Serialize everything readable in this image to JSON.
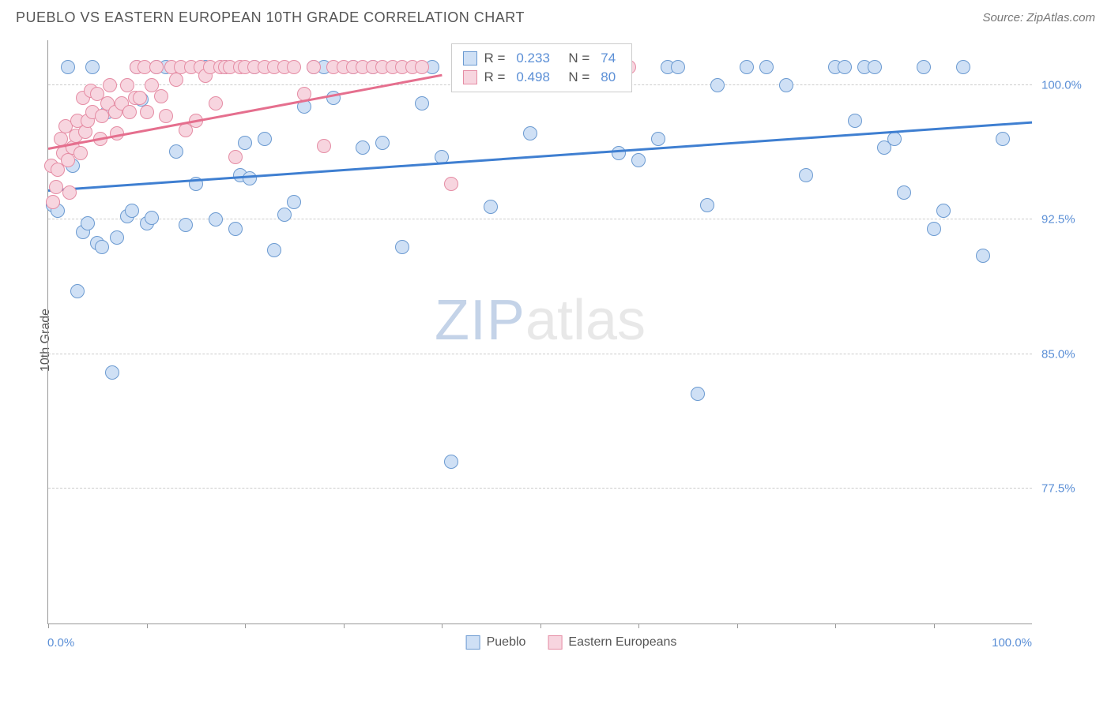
{
  "title": "PUEBLO VS EASTERN EUROPEAN 10TH GRADE CORRELATION CHART",
  "source": "Source: ZipAtlas.com",
  "y_axis_label": "10th Grade",
  "watermark": {
    "part1": "ZIP",
    "part2": "atlas"
  },
  "chart": {
    "type": "scatter",
    "xlim": [
      0,
      100
    ],
    "ylim": [
      70,
      102.5
    ],
    "y_ticks": [
      77.5,
      85.0,
      92.5,
      100.0
    ],
    "y_tick_labels": [
      "77.5%",
      "85.0%",
      "92.5%",
      "100.0%"
    ],
    "x_ticks": [
      0,
      10,
      20,
      30,
      40,
      50,
      60,
      70,
      80,
      90
    ],
    "x_min_label": "0.0%",
    "x_max_label": "100.0%",
    "grid_color": "#cccccc",
    "background_color": "#ffffff",
    "point_radius": 9,
    "series": [
      {
        "name": "Pueblo",
        "fill": "#cfe0f5",
        "stroke": "#6b9ad1",
        "r_value": "0.233",
        "n_value": "74",
        "trend": {
          "x1": 0,
          "y1": 94.2,
          "x2": 100,
          "y2": 98.0,
          "color": "#3f7fd1"
        },
        "points": [
          [
            0.5,
            93.3
          ],
          [
            1,
            93.0
          ],
          [
            2,
            101.0
          ],
          [
            2.5,
            95.5
          ],
          [
            3,
            88.5
          ],
          [
            3.5,
            91.8
          ],
          [
            4,
            92.3
          ],
          [
            4.5,
            101.0
          ],
          [
            5,
            91.2
          ],
          [
            5.5,
            91.0
          ],
          [
            6,
            98.5
          ],
          [
            6.5,
            84.0
          ],
          [
            7,
            91.5
          ],
          [
            8,
            92.7
          ],
          [
            8.5,
            93.0
          ],
          [
            9,
            101.0
          ],
          [
            9.5,
            99.2
          ],
          [
            10,
            92.3
          ],
          [
            10.5,
            92.6
          ],
          [
            11,
            101.0
          ],
          [
            12,
            101.0
          ],
          [
            13,
            96.3
          ],
          [
            14,
            92.2
          ],
          [
            15,
            94.5
          ],
          [
            16,
            101.0
          ],
          [
            17,
            92.5
          ],
          [
            18,
            101.0
          ],
          [
            19,
            92.0
          ],
          [
            19.5,
            95.0
          ],
          [
            20,
            96.8
          ],
          [
            20.5,
            94.8
          ],
          [
            21,
            101.0
          ],
          [
            22,
            97.0
          ],
          [
            23,
            90.8
          ],
          [
            24,
            92.8
          ],
          [
            25,
            93.5
          ],
          [
            26,
            98.8
          ],
          [
            27,
            101.0
          ],
          [
            28,
            101.0
          ],
          [
            29,
            99.3
          ],
          [
            31,
            101.0
          ],
          [
            32,
            96.5
          ],
          [
            33,
            101.0
          ],
          [
            34,
            96.8
          ],
          [
            36,
            91.0
          ],
          [
            38,
            99.0
          ],
          [
            39,
            101.0
          ],
          [
            40,
            96.0
          ],
          [
            41,
            79.0
          ],
          [
            42,
            101.0
          ],
          [
            44,
            101.0
          ],
          [
            45,
            93.2
          ],
          [
            47,
            101.0
          ],
          [
            49,
            97.3
          ],
          [
            54,
            101.0
          ],
          [
            58,
            96.2
          ],
          [
            60,
            95.8
          ],
          [
            62,
            97.0
          ],
          [
            63,
            101.0
          ],
          [
            64,
            101.0
          ],
          [
            66,
            82.8
          ],
          [
            67,
            93.3
          ],
          [
            68,
            100.0
          ],
          [
            71,
            101.0
          ],
          [
            73,
            101.0
          ],
          [
            75,
            100.0
          ],
          [
            77,
            95.0
          ],
          [
            80,
            101.0
          ],
          [
            81,
            101.0
          ],
          [
            82,
            98.0
          ],
          [
            83,
            101.0
          ],
          [
            84,
            101.0
          ],
          [
            85,
            96.5
          ],
          [
            86,
            97.0
          ],
          [
            87,
            94.0
          ],
          [
            89,
            101.0
          ],
          [
            90,
            92.0
          ],
          [
            91,
            93.0
          ],
          [
            93,
            101.0
          ],
          [
            95,
            90.5
          ],
          [
            97,
            97.0
          ]
        ]
      },
      {
        "name": "Eastern Europeans",
        "fill": "#f7d5df",
        "stroke": "#e58ca4",
        "r_value": "0.498",
        "n_value": "80",
        "trend": {
          "x1": 0,
          "y1": 96.5,
          "x2": 40,
          "y2": 100.6,
          "color": "#e56f8e"
        },
        "points": [
          [
            0.3,
            95.5
          ],
          [
            0.5,
            93.5
          ],
          [
            0.8,
            94.3
          ],
          [
            1,
            95.3
          ],
          [
            1.3,
            97.0
          ],
          [
            1.5,
            96.2
          ],
          [
            1.8,
            97.7
          ],
          [
            2,
            95.8
          ],
          [
            2.2,
            94.0
          ],
          [
            2.5,
            96.5
          ],
          [
            2.8,
            97.2
          ],
          [
            3,
            98.0
          ],
          [
            3.3,
            96.2
          ],
          [
            3.5,
            99.3
          ],
          [
            3.8,
            97.4
          ],
          [
            4,
            98.0
          ],
          [
            4.3,
            99.7
          ],
          [
            4.5,
            98.5
          ],
          [
            5,
            99.5
          ],
          [
            5.3,
            97.0
          ],
          [
            5.5,
            98.3
          ],
          [
            6,
            99.0
          ],
          [
            6.3,
            100.0
          ],
          [
            6.8,
            98.5
          ],
          [
            7,
            97.3
          ],
          [
            7.5,
            99.0
          ],
          [
            8,
            100.0
          ],
          [
            8.3,
            98.5
          ],
          [
            8.8,
            99.3
          ],
          [
            9,
            101.0
          ],
          [
            9.3,
            99.3
          ],
          [
            9.8,
            101.0
          ],
          [
            10,
            98.5
          ],
          [
            10.5,
            100.0
          ],
          [
            11,
            101.0
          ],
          [
            11.5,
            99.4
          ],
          [
            12,
            98.3
          ],
          [
            12.5,
            101.0
          ],
          [
            13,
            100.3
          ],
          [
            13.5,
            101.0
          ],
          [
            14,
            97.5
          ],
          [
            14.5,
            101.0
          ],
          [
            15,
            98.0
          ],
          [
            15.5,
            101.0
          ],
          [
            16,
            100.5
          ],
          [
            16.5,
            101.0
          ],
          [
            17,
            99.0
          ],
          [
            17.5,
            101.0
          ],
          [
            18,
            101.0
          ],
          [
            18.5,
            101.0
          ],
          [
            19,
            96.0
          ],
          [
            19.5,
            101.0
          ],
          [
            20,
            101.0
          ],
          [
            21,
            101.0
          ],
          [
            22,
            101.0
          ],
          [
            23,
            101.0
          ],
          [
            24,
            101.0
          ],
          [
            25,
            101.0
          ],
          [
            26,
            99.5
          ],
          [
            27,
            101.0
          ],
          [
            28,
            96.6
          ],
          [
            29,
            101.0
          ],
          [
            30,
            101.0
          ],
          [
            31,
            101.0
          ],
          [
            32,
            101.0
          ],
          [
            33,
            101.0
          ],
          [
            34,
            101.0
          ],
          [
            35,
            101.0
          ],
          [
            36,
            101.0
          ],
          [
            37,
            101.0
          ],
          [
            38,
            101.0
          ],
          [
            41,
            94.5
          ],
          [
            43,
            101.0
          ],
          [
            44,
            101.0
          ],
          [
            45,
            101.0
          ],
          [
            46,
            101.0
          ],
          [
            59,
            101.0
          ]
        ]
      }
    ]
  },
  "stats_box": {
    "left_pct": 41,
    "top_pct": 0.5
  },
  "legend_labels": [
    "Pueblo",
    "Eastern Europeans"
  ]
}
